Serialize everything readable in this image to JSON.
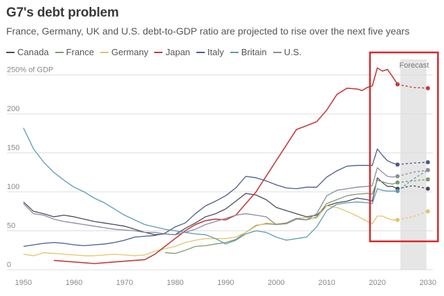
{
  "chart_data": {
    "type": "line",
    "title": "G7's debt problem",
    "subtitle": "France, Germany, UK and U.S. debt-to-GDP ratio are projected to rise over the next five years",
    "ylabel": "250% of GDP",
    "y_ticks": [
      "250% of GDP",
      "200",
      "150",
      "100",
      "50",
      "0"
    ],
    "y_tick_values": [
      250,
      200,
      150,
      100,
      50,
      0
    ],
    "x_ticks": [
      "1950",
      "1960",
      "1970",
      "1980",
      "1990",
      "2000",
      "2010",
      "2020",
      "2030"
    ],
    "x_tick_values": [
      1950,
      1960,
      1970,
      1980,
      1990,
      2000,
      2010,
      2020,
      2030
    ],
    "xlim": [
      1947,
      2031
    ],
    "ylim": [
      0,
      255
    ],
    "forecast_label": "Forecast",
    "forecast_range": [
      2024,
      2030
    ],
    "highlight_box_range": {
      "x": [
        2018,
        2032
      ],
      "y": [
        40,
        280
      ]
    },
    "series": [
      {
        "name": "Canada",
        "color": "#4a4a5a",
        "x": [
          1950,
          1952,
          1954,
          1956,
          1958,
          1960,
          1962,
          1964,
          1966,
          1968,
          1970,
          1972,
          1974,
          1976,
          1978,
          1980,
          1982,
          1984,
          1986,
          1988,
          1990,
          1992,
          1994,
          1996,
          1998,
          2000,
          2002,
          2004,
          2006,
          2008,
          2010,
          2012,
          2014,
          2016,
          2018,
          2019,
          2020,
          2021,
          2022,
          2023,
          2024
        ],
        "y": [
          87,
          75,
          72,
          68,
          70,
          68,
          65,
          62,
          60,
          58,
          56,
          52,
          48,
          45,
          46,
          45,
          53,
          60,
          68,
          72,
          78,
          88,
          98,
          96,
          90,
          80,
          76,
          72,
          68,
          70,
          82,
          86,
          88,
          92,
          90,
          88,
          118,
          112,
          107,
          107,
          104
        ],
        "forecast_x": [
          2024,
          2027,
          2030
        ],
        "forecast_y": [
          104,
          108,
          104
        ]
      },
      {
        "name": "France",
        "color": "#7a9a6e",
        "x": [
          1978,
          1980,
          1982,
          1984,
          1986,
          1988,
          1990,
          1992,
          1994,
          1996,
          1998,
          2000,
          2002,
          2004,
          2006,
          2008,
          2010,
          2012,
          2014,
          2016,
          2018,
          2019,
          2020,
          2021,
          2022,
          2023,
          2024
        ],
        "y": [
          22,
          21,
          25,
          30,
          31,
          33,
          35,
          39,
          48,
          57,
          59,
          58,
          59,
          65,
          64,
          68,
          85,
          90,
          95,
          97,
          98,
          97,
          115,
          113,
          111,
          110,
          112
        ],
        "forecast_x": [
          2024,
          2027,
          2030
        ],
        "forecast_y": [
          112,
          114,
          116
        ]
      },
      {
        "name": "Germany",
        "color": "#e3c46a",
        "x": [
          1950,
          1952,
          1954,
          1956,
          1958,
          1960,
          1962,
          1964,
          1966,
          1968,
          1970,
          1972,
          1974,
          1976,
          1978,
          1980,
          1982,
          1984,
          1986,
          1988,
          1990,
          1992,
          1994,
          1996,
          1998,
          2000,
          2002,
          2004,
          2006,
          2008,
          2010,
          2012,
          2014,
          2016,
          2018,
          2019,
          2020,
          2021,
          2022,
          2023,
          2024
        ],
        "y": [
          20,
          18,
          22,
          21,
          20,
          19,
          18,
          18,
          19,
          20,
          19,
          18,
          19,
          24,
          27,
          30,
          35,
          38,
          40,
          40,
          40,
          42,
          48,
          56,
          60,
          59,
          60,
          66,
          67,
          66,
          82,
          80,
          75,
          69,
          62,
          59,
          69,
          69,
          66,
          64,
          64
        ],
        "forecast_x": [
          2024,
          2027,
          2030
        ],
        "forecast_y": [
          64,
          68,
          75
        ]
      },
      {
        "name": "Japan",
        "color": "#c43a3a",
        "x": [
          1956,
          1958,
          1960,
          1962,
          1964,
          1966,
          1968,
          1970,
          1972,
          1974,
          1976,
          1978,
          1980,
          1982,
          1984,
          1986,
          1988,
          1990,
          1992,
          1994,
          1996,
          1998,
          2000,
          2002,
          2004,
          2006,
          2008,
          2010,
          2012,
          2014,
          2016,
          2017,
          2018,
          2019,
          2020,
          2021,
          2022,
          2023,
          2024
        ],
        "y": [
          12,
          11,
          10,
          9,
          8,
          9,
          10,
          11,
          12,
          13,
          20,
          30,
          40,
          50,
          58,
          63,
          65,
          64,
          70,
          85,
          100,
          120,
          140,
          160,
          180,
          185,
          190,
          205,
          225,
          233,
          232,
          230,
          234,
          236,
          259,
          255,
          257,
          248,
          238
        ],
        "forecast_x": [
          2024,
          2027,
          2030
        ],
        "forecast_y": [
          238,
          234,
          233
        ]
      },
      {
        "name": "Italy",
        "color": "#4a5a8a",
        "x": [
          1950,
          1952,
          1954,
          1956,
          1958,
          1960,
          1962,
          1964,
          1966,
          1968,
          1970,
          1972,
          1974,
          1976,
          1978,
          1980,
          1982,
          1984,
          1986,
          1988,
          1990,
          1992,
          1994,
          1996,
          1998,
          2000,
          2002,
          2004,
          2006,
          2008,
          2010,
          2012,
          2014,
          2016,
          2018,
          2019,
          2020,
          2021,
          2022,
          2023,
          2024
        ],
        "y": [
          30,
          32,
          34,
          35,
          34,
          32,
          31,
          32,
          33,
          35,
          38,
          42,
          43,
          44,
          47,
          55,
          60,
          72,
          82,
          88,
          95,
          105,
          120,
          118,
          114,
          109,
          105,
          104,
          106,
          106,
          119,
          127,
          133,
          134,
          134,
          134,
          155,
          147,
          140,
          137,
          135
        ],
        "forecast_x": [
          2024,
          2027,
          2030
        ],
        "forecast_y": [
          135,
          137,
          138
        ]
      },
      {
        "name": "Britain",
        "color": "#5a9ab0",
        "x": [
          1950,
          1952,
          1954,
          1956,
          1958,
          1960,
          1962,
          1964,
          1966,
          1968,
          1970,
          1972,
          1974,
          1976,
          1978,
          1980,
          1982,
          1984,
          1986,
          1988,
          1990,
          1992,
          1994,
          1996,
          1998,
          2000,
          2002,
          2004,
          2006,
          2008,
          2010,
          2012,
          2014,
          2016,
          2018,
          2019,
          2020,
          2021,
          2022,
          2023,
          2024
        ],
        "y": [
          182,
          155,
          138,
          125,
          115,
          106,
          100,
          92,
          86,
          78,
          70,
          64,
          58,
          55,
          52,
          50,
          48,
          46,
          45,
          40,
          33,
          38,
          46,
          50,
          48,
          42,
          38,
          40,
          42,
          55,
          76,
          84,
          86,
          87,
          86,
          85,
          104,
          102,
          101,
          101,
          101
        ],
        "forecast_x": [
          2024,
          2027,
          2030
        ],
        "forecast_y": [
          101,
          116,
          128
        ]
      },
      {
        "name": "U.S.",
        "color": "#8a8a9e",
        "x": [
          1950,
          1952,
          1954,
          1956,
          1958,
          1960,
          1962,
          1964,
          1966,
          1968,
          1970,
          1972,
          1974,
          1976,
          1978,
          1980,
          1982,
          1984,
          1986,
          1988,
          1990,
          1992,
          1994,
          1996,
          1998,
          2000,
          2002,
          2004,
          2006,
          2008,
          2010,
          2012,
          2014,
          2016,
          2018,
          2019,
          2020,
          2021,
          2022,
          2023,
          2024
        ],
        "y": [
          85,
          72,
          70,
          65,
          62,
          60,
          58,
          56,
          54,
          52,
          51,
          50,
          48,
          48,
          46,
          45,
          48,
          52,
          58,
          62,
          66,
          70,
          72,
          70,
          68,
          58,
          60,
          66,
          64,
          72,
          95,
          102,
          104,
          106,
          107,
          108,
          131,
          125,
          120,
          119,
          120
        ],
        "forecast_x": [
          2024,
          2027,
          2030
        ],
        "forecast_y": [
          120,
          125,
          128
        ]
      }
    ]
  },
  "colors": {
    "highlight_box": "#d9262a",
    "forecast_band": "#e6e6e6",
    "grid": "#dddddd",
    "axis_text": "#888888"
  }
}
